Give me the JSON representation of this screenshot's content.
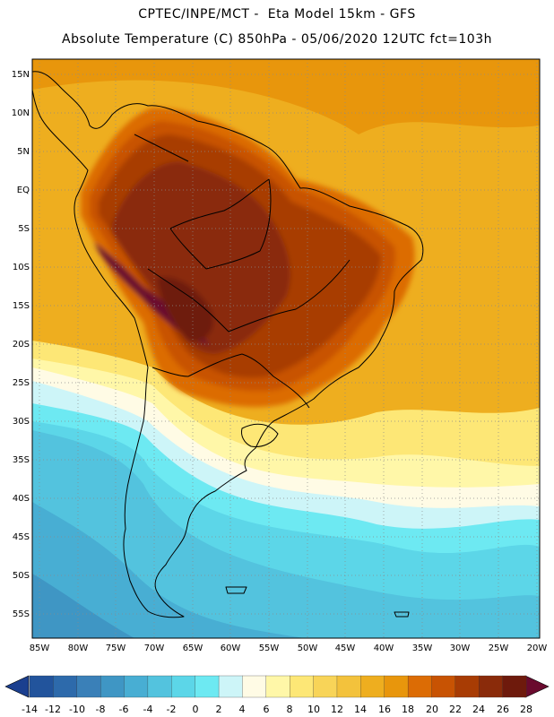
{
  "header": {
    "line1": "CPTEC/INPE/MCT -  Eta Model 15km - GFS",
    "line2": "Absolute Temperature (C) 850hPa - 05/06/2020 12UTC fct=103h"
  },
  "axes": {
    "lat_labels": [
      "15N",
      "10N",
      "5N",
      "EQ",
      "5S",
      "10S",
      "15S",
      "20S",
      "25S",
      "30S",
      "35S",
      "40S",
      "45S",
      "50S",
      "55S"
    ],
    "lon_labels": [
      "85W",
      "80W",
      "75W",
      "70W",
      "65W",
      "60W",
      "55W",
      "50W",
      "45W",
      "40W",
      "35W",
      "30W",
      "25W",
      "20W"
    ]
  },
  "colorbar": {
    "labels": [
      "-14",
      "-12",
      "-10",
      "-8",
      "-6",
      "-4",
      "-2",
      "0",
      "2",
      "4",
      "6",
      "8",
      "10",
      "12",
      "14",
      "16",
      "18",
      "20",
      "22",
      "24",
      "26",
      "28"
    ],
    "colors": [
      "#1b3f8f",
      "#22549c",
      "#2d6aab",
      "#3a80b8",
      "#3f96c4",
      "#48aed3",
      "#53c3de",
      "#5cd6e8",
      "#6de9f2",
      "#cdf5f8",
      "#fffbe5",
      "#fff7a8",
      "#fde776",
      "#f8d458",
      "#f3c23c",
      "#eeae1f",
      "#e8960c",
      "#dc6c05",
      "#c85303",
      "#a83c04",
      "#8a2b0a",
      "#6e1a0c",
      "#6a0a2e"
    ]
  },
  "regions": [
    {
      "name": "ocean-warm",
      "color": "#eeae1f"
    },
    {
      "name": "land-hot",
      "color": "#a83c04"
    },
    {
      "name": "cold-south",
      "color": "#53c3de"
    }
  ]
}
